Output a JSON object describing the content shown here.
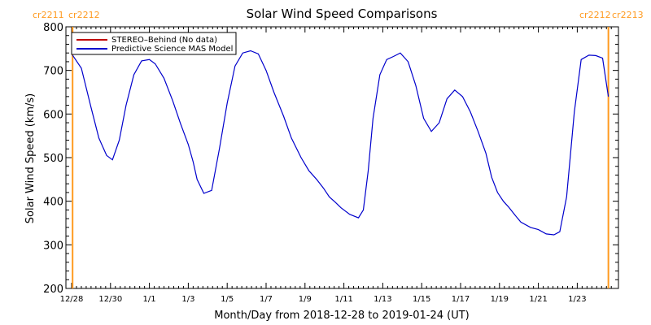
{
  "chart_data": {
    "type": "line",
    "title": "Solar Wind Speed Comparisons",
    "xlabel": "Month/Day from 2018-12-28 to 2019-01-24 (UT)",
    "ylabel": "Solar Wind Speed (km/s)",
    "ylim": [
      200,
      800
    ],
    "y_ticks": [
      200,
      300,
      400,
      500,
      600,
      700,
      800
    ],
    "xlim_days": [
      0,
      27.8
    ],
    "x_ticks": [
      {
        "day": 0,
        "label": "12/28"
      },
      {
        "day": 2,
        "label": "12/30"
      },
      {
        "day": 4,
        "label": "1/1"
      },
      {
        "day": 6,
        "label": "1/3"
      },
      {
        "day": 8,
        "label": "1/5"
      },
      {
        "day": 10,
        "label": "1/7"
      },
      {
        "day": 12,
        "label": "1/9"
      },
      {
        "day": 14,
        "label": "1/11"
      },
      {
        "day": 16,
        "label": "1/13"
      },
      {
        "day": 18,
        "label": "1/15"
      },
      {
        "day": 20,
        "label": "1/17"
      },
      {
        "day": 22,
        "label": "1/19"
      },
      {
        "day": 24,
        "label": "1/21"
      },
      {
        "day": 26,
        "label": "1/23"
      }
    ],
    "carrington_left": [
      "cr2211",
      "cr2212"
    ],
    "carrington_right": [
      "cr2212",
      "cr2213"
    ],
    "carrington_lines_days": [
      0.05,
      27.6
    ],
    "colors": {
      "stereo": "#c00000",
      "mas": "#0000cc",
      "carrington": "#ff9a1f"
    },
    "series": [
      {
        "name": "STEREO–Behind (No data)",
        "color": "#c00000",
        "x": [],
        "y": []
      },
      {
        "name": "Predictive Science MAS Model",
        "color": "#0000cc",
        "x": [
          0.05,
          0.5,
          1.0,
          1.4,
          1.8,
          2.1,
          2.45,
          2.8,
          3.2,
          3.6,
          4.0,
          4.3,
          4.75,
          5.2,
          5.6,
          6.0,
          6.25,
          6.45,
          6.8,
          7.2,
          7.6,
          8.0,
          8.4,
          8.8,
          9.2,
          9.6,
          10.0,
          10.4,
          10.9,
          11.3,
          11.8,
          12.2,
          12.6,
          12.95,
          13.25,
          13.55,
          13.85,
          14.3,
          14.75,
          15.0,
          15.25,
          15.5,
          15.85,
          16.2,
          16.55,
          16.9,
          17.3,
          17.7,
          18.1,
          18.5,
          18.9,
          19.3,
          19.7,
          20.1,
          20.5,
          20.9,
          21.3,
          21.6,
          21.9,
          22.2,
          22.5,
          22.8,
          23.1,
          23.6,
          24.0,
          24.4,
          24.8,
          25.1,
          25.45,
          25.85,
          26.2,
          26.6,
          26.95,
          27.3,
          27.6
        ],
        "y": [
          735,
          705,
          615,
          545,
          505,
          495,
          540,
          620,
          690,
          722,
          725,
          715,
          682,
          630,
          578,
          530,
          490,
          450,
          418,
          425,
          520,
          625,
          710,
          740,
          745,
          738,
          700,
          650,
          595,
          545,
          500,
          470,
          450,
          430,
          410,
          398,
          385,
          370,
          362,
          380,
          470,
          590,
          690,
          725,
          732,
          740,
          720,
          665,
          590,
          560,
          580,
          635,
          655,
          640,
          605,
          560,
          510,
          455,
          420,
          400,
          385,
          368,
          352,
          340,
          335,
          325,
          323,
          330,
          410,
          605,
          725,
          735,
          734,
          728,
          640
        ]
      }
    ]
  }
}
